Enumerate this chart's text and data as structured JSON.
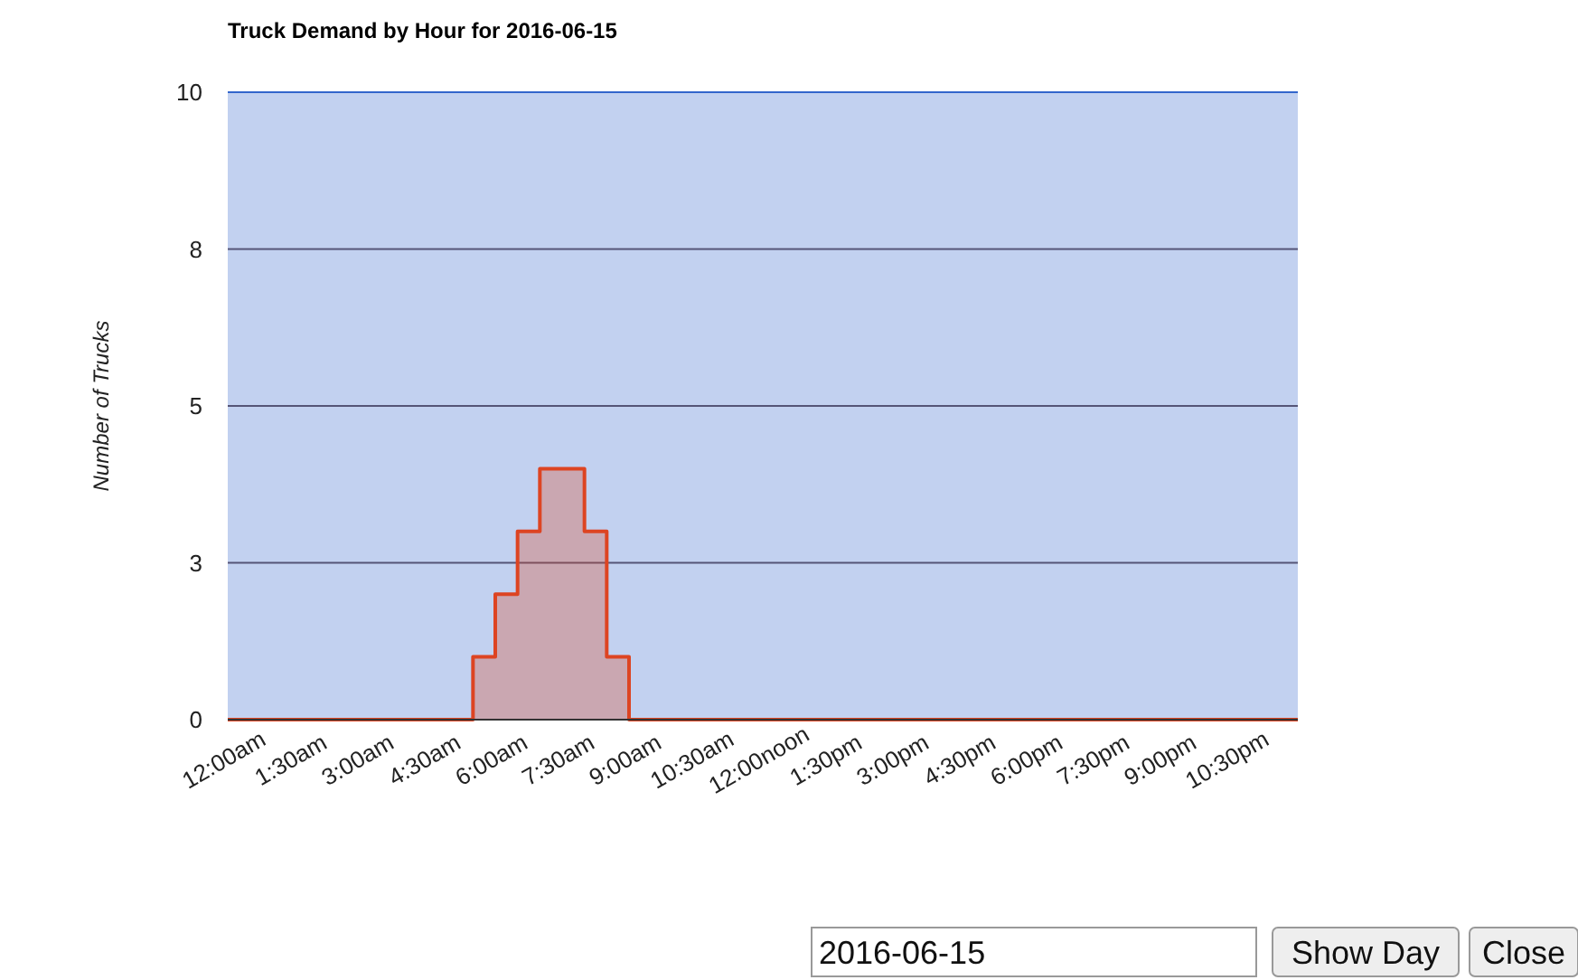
{
  "chart_data": {
    "type": "step",
    "title": "Truck Demand by Hour for 2016-06-15",
    "ylabel": "Number of Trucks",
    "x": [
      0,
      5.5,
      6,
      6.5,
      7,
      8,
      8.5,
      9,
      24
    ],
    "series": [
      {
        "color": "#dd4422",
        "values": [
          0,
          1,
          2,
          3,
          4,
          3,
          1,
          0,
          0
        ]
      }
    ],
    "xlim": [
      0,
      24
    ],
    "xticks": [
      {
        "value": 0,
        "label": "12:00am"
      },
      {
        "value": 1.5,
        "label": "1:30am"
      },
      {
        "value": 3,
        "label": "3:00am"
      },
      {
        "value": 4.5,
        "label": "4:30am"
      },
      {
        "value": 6,
        "label": "6:00am"
      },
      {
        "value": 7.5,
        "label": "7:30am"
      },
      {
        "value": 9,
        "label": "9:00am"
      },
      {
        "value": 10.5,
        "label": "10:30am"
      },
      {
        "value": 12,
        "label": "12:00noon"
      },
      {
        "value": 13.5,
        "label": "1:30pm"
      },
      {
        "value": 15,
        "label": "3:00pm"
      },
      {
        "value": 16.5,
        "label": "4:30pm"
      },
      {
        "value": 18,
        "label": "6:00pm"
      },
      {
        "value": 19.5,
        "label": "7:30pm"
      },
      {
        "value": 21,
        "label": "9:00pm"
      },
      {
        "value": 22.5,
        "label": "10:30pm"
      }
    ],
    "ylim": [
      0,
      10
    ],
    "yticks": [
      0,
      {
        "value": 2.5,
        "label": "3"
      },
      5,
      {
        "value": 7.5,
        "label": "8"
      },
      10
    ],
    "grid": "y",
    "annotations": [
      "2016-06-15",
      "Show Day",
      "Close"
    ]
  }
}
